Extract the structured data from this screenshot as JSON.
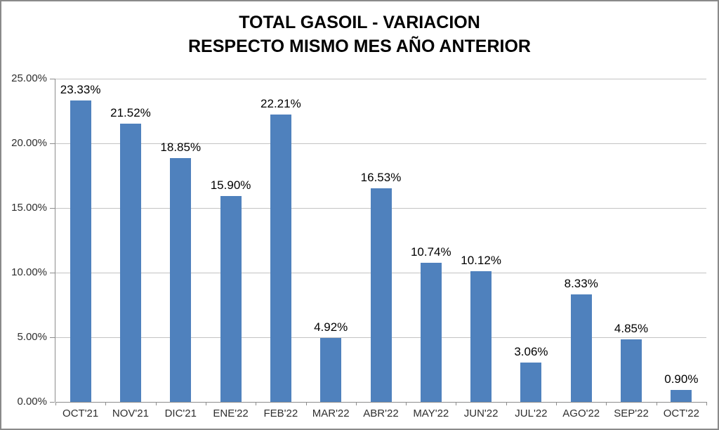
{
  "chart_data": {
    "type": "bar",
    "title": "TOTAL GASOIL - VARIACION RESPECTO MISMO MES AÑO ANTERIOR",
    "title_line1": "TOTAL GASOIL - VARIACION",
    "title_line2": "RESPECTO MISMO MES AÑO ANTERIOR",
    "categories": [
      "OCT'21",
      "NOV'21",
      "DIC'21",
      "ENE'22",
      "FEB'22",
      "MAR'22",
      "ABR'22",
      "MAY'22",
      "JUN'22",
      "JUL'22",
      "AGO'22",
      "SEP'22",
      "OCT'22"
    ],
    "values": [
      23.33,
      21.52,
      18.85,
      15.9,
      22.21,
      4.92,
      16.53,
      10.74,
      10.12,
      3.06,
      8.33,
      4.85,
      0.9
    ],
    "data_labels": [
      "23.33%",
      "21.52%",
      "18.85%",
      "15.90%",
      "22.21%",
      "4.92%",
      "16.53%",
      "10.74%",
      "10.12%",
      "3.06%",
      "8.33%",
      "4.85%",
      "0.90%"
    ],
    "yticks": [
      {
        "value": 0,
        "label": "0.00%"
      },
      {
        "value": 5,
        "label": "5.00%"
      },
      {
        "value": 10,
        "label": "10.00%"
      },
      {
        "value": 15,
        "label": "15.00%"
      },
      {
        "value": 20,
        "label": "20.00%"
      },
      {
        "value": 25,
        "label": "25.00%"
      }
    ],
    "ylim": [
      0,
      25
    ],
    "xlabel": "",
    "ylabel": "",
    "legend": "none",
    "grid": "horizontal",
    "bar_color": "#4f81bd",
    "gridline_color": "#c3c3c3",
    "axis_color": "#8c8c8c",
    "label_color": "#000000",
    "tick_label_color": "#2e2e2e"
  }
}
